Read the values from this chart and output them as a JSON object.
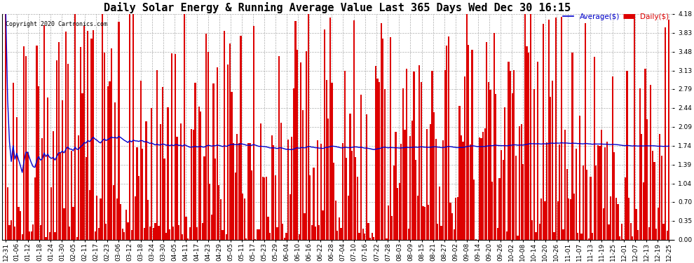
{
  "title": "Daily Solar Energy & Running Average Value Last 365 Days Wed Dec 30 16:15",
  "copyright": "Copyright 2020 Cartronics.com",
  "legend_avg": "Average($)",
  "legend_daily": "Daily($)",
  "bar_color": "#dd0000",
  "avg_line_color": "#0000cc",
  "background_color": "#ffffff",
  "grid_color": "#aaaaaa",
  "ymin": 0.0,
  "ymax": 4.18,
  "yticks": [
    0.0,
    0.35,
    0.7,
    1.04,
    1.39,
    1.74,
    2.09,
    2.44,
    2.79,
    3.13,
    3.48,
    3.83,
    4.18
  ],
  "num_days": 365,
  "avg_value": 1.74,
  "title_fontsize": 11,
  "tick_fontsize": 6.5,
  "x_tick_labels": [
    "12-31",
    "01-06",
    "01-12",
    "01-18",
    "01-24",
    "01-30",
    "02-05",
    "02-11",
    "02-17",
    "02-23",
    "03-06",
    "03-12",
    "03-18",
    "03-24",
    "03-30",
    "04-05",
    "04-11",
    "04-17",
    "04-23",
    "04-29",
    "05-05",
    "05-11",
    "05-17",
    "05-23",
    "05-29",
    "06-04",
    "06-10",
    "06-16",
    "06-22",
    "06-28",
    "07-04",
    "07-10",
    "07-16",
    "07-22",
    "07-28",
    "08-03",
    "08-09",
    "08-15",
    "08-21",
    "08-27",
    "09-02",
    "09-08",
    "09-14",
    "09-20",
    "09-26",
    "10-02",
    "10-08",
    "10-14",
    "10-20",
    "10-26",
    "11-01",
    "11-07",
    "11-13",
    "11-19",
    "11-25",
    "12-01",
    "12-07",
    "12-13",
    "12-19",
    "12-25"
  ]
}
